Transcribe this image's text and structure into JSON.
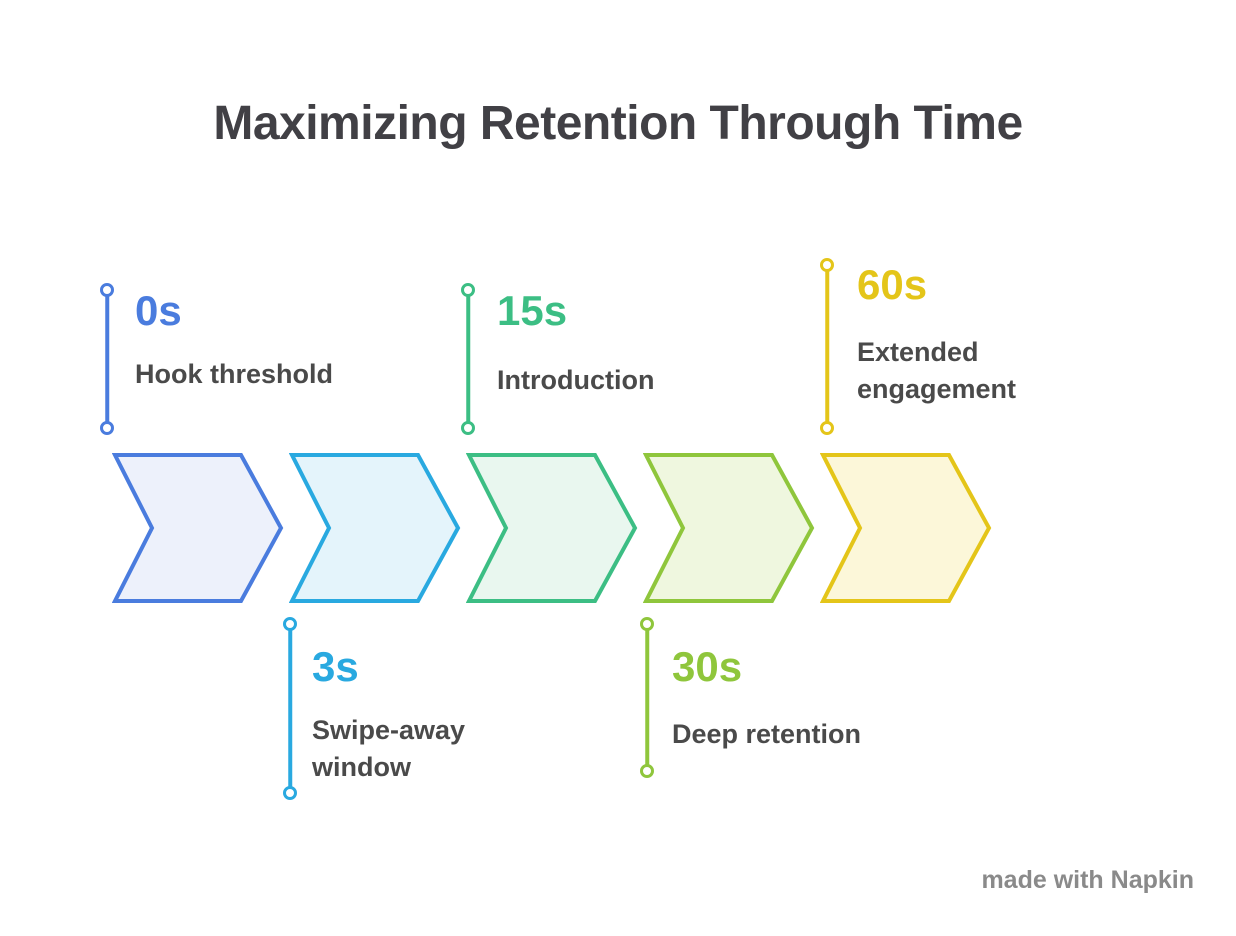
{
  "title": "Maximizing Retention Through Time",
  "watermark": "made with Napkin",
  "timeline": {
    "stages": [
      {
        "time": "0s",
        "label": "Hook threshold",
        "accent": "#4A7CDE",
        "fill": "#EDF1FB",
        "side": "top"
      },
      {
        "time": "3s",
        "label": "Swipe-away\nwindow",
        "accent": "#29A9E0",
        "fill": "#E4F4FB",
        "side": "bottom"
      },
      {
        "time": "15s",
        "label": "Introduction",
        "accent": "#3CBE84",
        "fill": "#E9F7EF",
        "side": "top"
      },
      {
        "time": "30s",
        "label": "Deep retention",
        "accent": "#8FC63C",
        "fill": "#EFF7DF",
        "side": "bottom"
      },
      {
        "time": "60s",
        "label": "Extended\nengagement",
        "accent": "#E4C519",
        "fill": "#FCF7D9",
        "side": "top"
      }
    ]
  }
}
